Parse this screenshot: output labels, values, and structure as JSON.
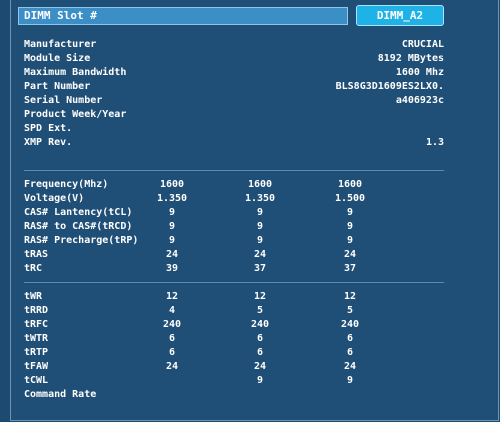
{
  "header": {
    "title": "DIMM Slot #",
    "slot_button": "DIMM_A2"
  },
  "info": [
    {
      "label": "Manufacturer",
      "value": "CRUCIAL"
    },
    {
      "label": "Module Size",
      "value": "8192 MBytes"
    },
    {
      "label": "Maximum Bandwidth",
      "value": "1600 Mhz"
    },
    {
      "label": "Part Number",
      "value": "BLS8G3D1609ES2LX0."
    },
    {
      "label": "Serial Number",
      "value": "a406923c"
    },
    {
      "label": "Product Week/Year",
      "value": ""
    },
    {
      "label": "SPD Ext.",
      "value": ""
    },
    {
      "label": "XMP Rev.",
      "value": "1.3"
    }
  ],
  "timings1": [
    {
      "label": "Frequency(Mhz)",
      "v1": "1600",
      "v2": "1600",
      "v3": "1600"
    },
    {
      "label": "Voltage(V)",
      "v1": "1.350",
      "v2": "1.350",
      "v3": "1.500"
    },
    {
      "label": "CAS# Lantency(tCL)",
      "v1": "9",
      "v2": "9",
      "v3": "9"
    },
    {
      "label": "RAS# to CAS#(tRCD)",
      "v1": "9",
      "v2": "9",
      "v3": "9"
    },
    {
      "label": "RAS# Precharge(tRP)",
      "v1": "9",
      "v2": "9",
      "v3": "9"
    },
    {
      "label": "tRAS",
      "v1": "24",
      "v2": "24",
      "v3": "24"
    },
    {
      "label": "tRC",
      "v1": "39",
      "v2": "37",
      "v3": "37"
    }
  ],
  "timings2": [
    {
      "label": "tWR",
      "v1": "12",
      "v2": "12",
      "v3": "12"
    },
    {
      "label": "tRRD",
      "v1": "4",
      "v2": "5",
      "v3": "5"
    },
    {
      "label": "tRFC",
      "v1": "240",
      "v2": "240",
      "v3": "240"
    },
    {
      "label": "tWTR",
      "v1": "6",
      "v2": "6",
      "v3": "6"
    },
    {
      "label": "tRTP",
      "v1": "6",
      "v2": "6",
      "v3": "6"
    },
    {
      "label": "tFAW",
      "v1": "24",
      "v2": "24",
      "v3": "24"
    },
    {
      "label": "tCWL",
      "v1": "",
      "v2": "9",
      "v3": "9"
    },
    {
      "label": "Command Rate",
      "v1": "",
      "v2": "",
      "v3": ""
    }
  ]
}
